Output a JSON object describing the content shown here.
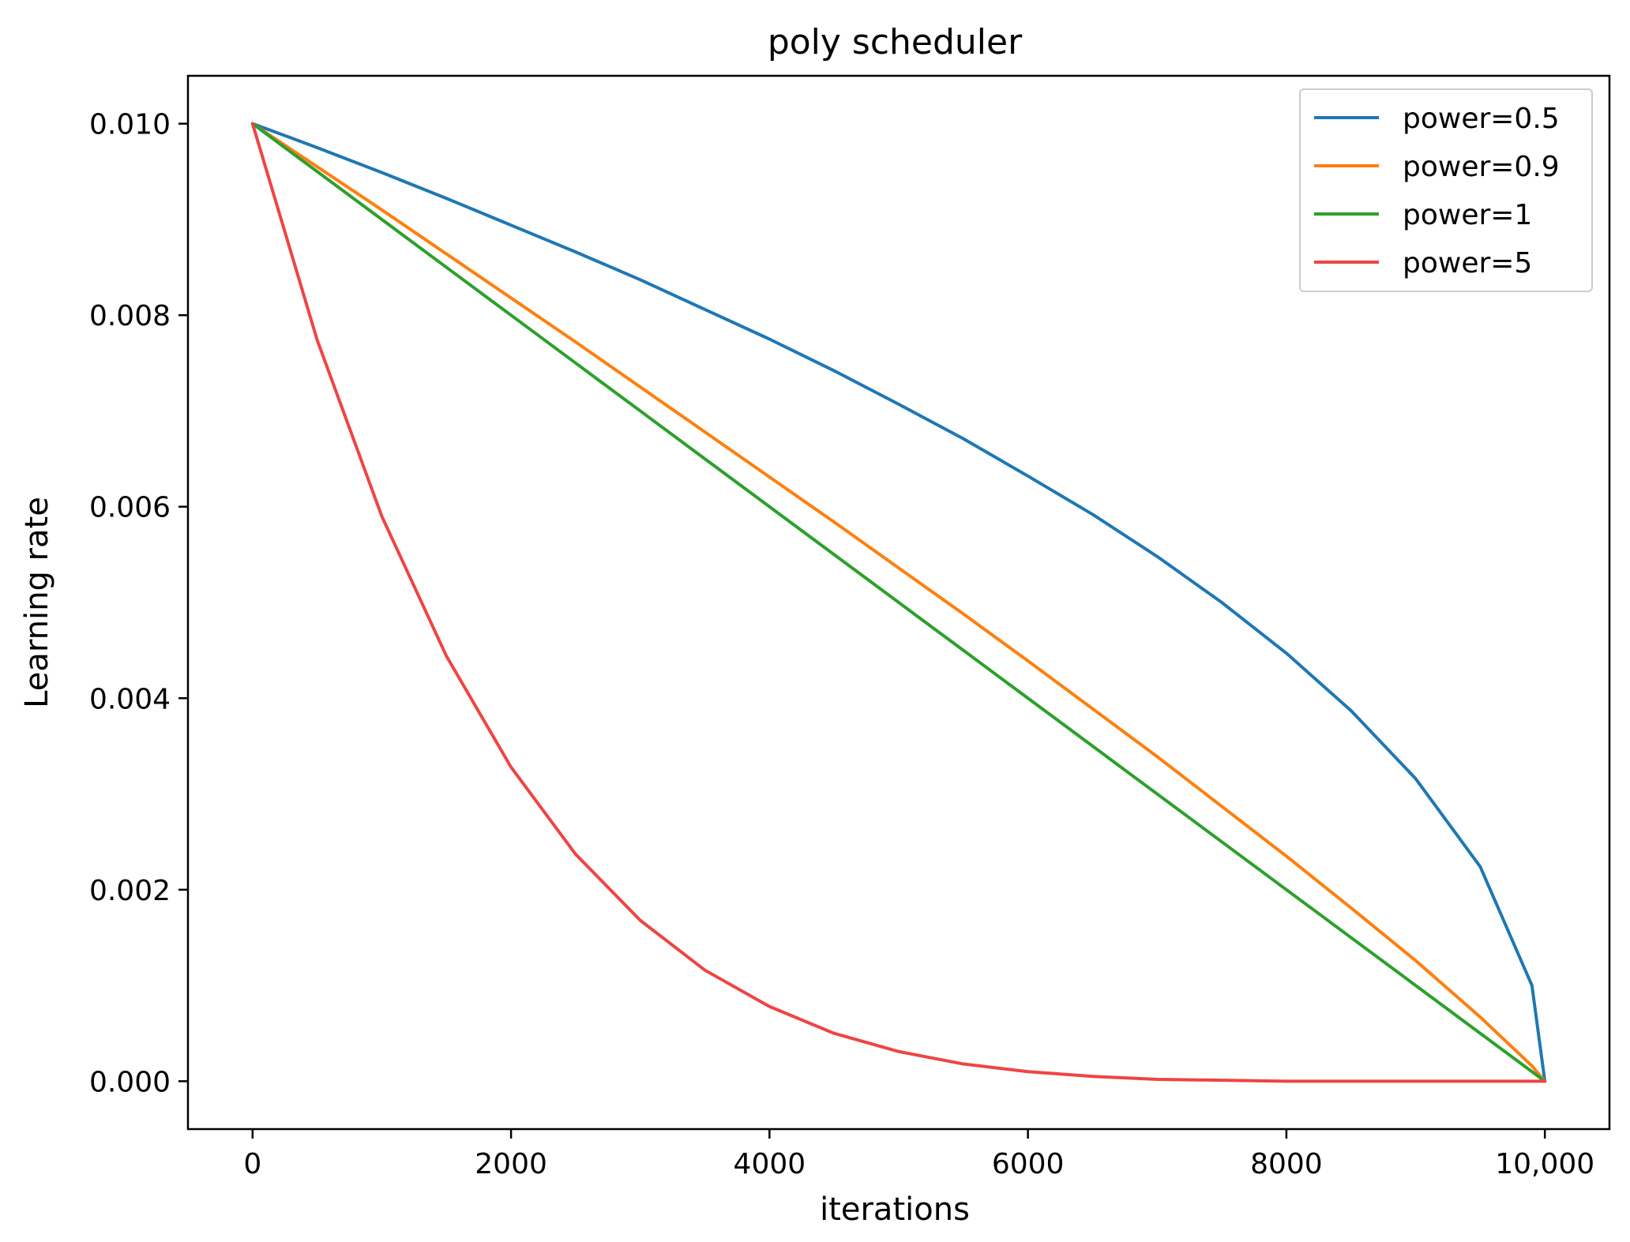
{
  "chart_data": {
    "type": "line",
    "title": "poly scheduler",
    "xlabel": "iterations",
    "ylabel": "Learning rate",
    "xlim": [
      -500,
      10500
    ],
    "ylim": [
      -0.0005,
      0.0105
    ],
    "x_ticks": [
      0,
      2000,
      4000,
      6000,
      8000,
      10000
    ],
    "x_tick_labels": [
      "0",
      "2000",
      "4000",
      "6000",
      "8000",
      "10,000"
    ],
    "y_ticks": [
      0.0,
      0.002,
      0.004,
      0.006,
      0.008,
      0.01
    ],
    "y_tick_labels": [
      "0.000",
      "0.002",
      "0.004",
      "0.006",
      "0.008",
      "0.010"
    ],
    "grid": false,
    "legend_position": "upper right",
    "x": [
      0,
      500,
      1000,
      1500,
      2000,
      2500,
      3000,
      3500,
      4000,
      4500,
      5000,
      5500,
      6000,
      6500,
      7000,
      7500,
      8000,
      8500,
      9000,
      9500,
      9900,
      10000
    ],
    "series": [
      {
        "name": "power=0.5",
        "color": "#1f77b4",
        "values": [
          0.01,
          0.00975,
          0.00949,
          0.00922,
          0.00894,
          0.00866,
          0.00837,
          0.00806,
          0.00775,
          0.00742,
          0.00707,
          0.00671,
          0.00632,
          0.00592,
          0.00548,
          0.005,
          0.00447,
          0.00387,
          0.00316,
          0.00224,
          0.001,
          0.0
        ]
      },
      {
        "name": "power=0.9",
        "color": "#ff7f0e",
        "values": [
          0.01,
          0.00955,
          0.0091,
          0.00864,
          0.00818,
          0.00772,
          0.00725,
          0.00678,
          0.00631,
          0.00584,
          0.00536,
          0.00488,
          0.00439,
          0.00389,
          0.00339,
          0.00287,
          0.00235,
          0.00181,
          0.00126,
          0.00067,
          0.00016,
          0.0
        ]
      },
      {
        "name": "power=1",
        "color": "#2ca02c",
        "values": [
          0.01,
          0.0095,
          0.009,
          0.0085,
          0.008,
          0.0075,
          0.007,
          0.0065,
          0.006,
          0.0055,
          0.005,
          0.0045,
          0.004,
          0.0035,
          0.003,
          0.0025,
          0.002,
          0.0015,
          0.001,
          0.0005,
          0.0001,
          0.0
        ]
      },
      {
        "name": "power=5",
        "color": "#ef4444",
        "values": [
          0.01,
          0.00774,
          0.0059,
          0.00444,
          0.00328,
          0.00237,
          0.00168,
          0.00116,
          0.00078,
          0.0005,
          0.00031,
          0.00018,
          0.0001,
          5e-05,
          2e-05,
          1e-05,
          0.0,
          0.0,
          0.0,
          0.0,
          0.0,
          0.0
        ]
      }
    ]
  }
}
